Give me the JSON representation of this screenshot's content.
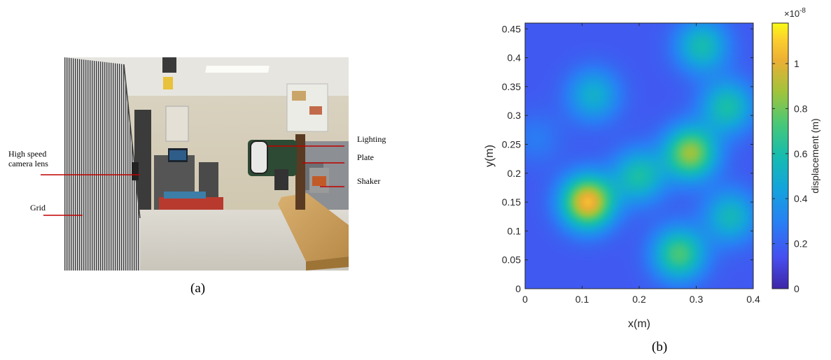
{
  "panel_a": {
    "caption": "(a)",
    "callouts": {
      "lighting": "Lighting",
      "plate": "Plate",
      "shaker": "Shaker",
      "camera_line1": "High speed",
      "camera_line2": "camera lens",
      "grid": "Grid"
    }
  },
  "panel_b": {
    "caption": "(b)"
  },
  "chart_data": {
    "type": "heatmap",
    "title": "",
    "xlabel": "x(m)",
    "ylabel": "y(m)",
    "xlim": [
      0,
      0.4
    ],
    "ylim": [
      0,
      0.46
    ],
    "x_ticks": [
      "0",
      "0.1",
      "0.2",
      "0.3",
      "0.4"
    ],
    "y_ticks": [
      "0",
      "0.05",
      "0.1",
      "0.15",
      "0.2",
      "0.25",
      "0.3",
      "0.35",
      "0.4",
      "0.45"
    ],
    "colorbar": {
      "label": "displacement (m)",
      "exponent_label": "×10",
      "exponent": "-8",
      "ticks": [
        "0",
        "0.2",
        "0.4",
        "0.6",
        "0.8",
        "1"
      ],
      "range": [
        0,
        1.18
      ],
      "colormap": "parula"
    },
    "peaks": [
      {
        "x": 0.11,
        "y": 0.15,
        "value": 1.05
      },
      {
        "x": 0.29,
        "y": 0.235,
        "value": 0.86
      },
      {
        "x": 0.27,
        "y": 0.06,
        "value": 0.72
      },
      {
        "x": 0.2,
        "y": 0.195,
        "value": 0.6
      },
      {
        "x": 0.355,
        "y": 0.315,
        "value": 0.6
      },
      {
        "x": 0.36,
        "y": 0.125,
        "value": 0.55
      },
      {
        "x": 0.31,
        "y": 0.42,
        "value": 0.58
      },
      {
        "x": 0.12,
        "y": 0.335,
        "value": 0.5
      },
      {
        "x": 0.02,
        "y": 0.26,
        "value": 0.28
      }
    ]
  }
}
